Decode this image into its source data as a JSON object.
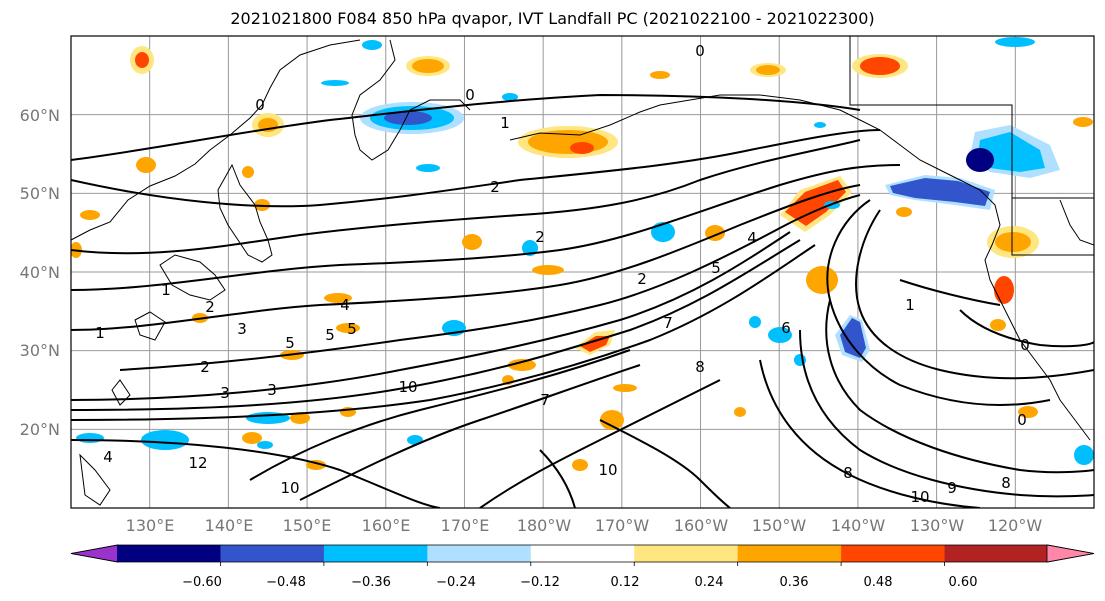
{
  "title": "2021021800 F084 850 hPa qvapor, IVT Landfall PC (2021022100 - 2021022300)",
  "lat_labels": [
    "60°N",
    "50°N",
    "40°N",
    "30°N",
    "20°N"
  ],
  "lat_values": [
    60,
    50,
    40,
    30,
    20
  ],
  "lon_labels": [
    "130°E",
    "140°E",
    "150°E",
    "160°E",
    "170°E",
    "180°W",
    "170°W",
    "160°W",
    "150°W",
    "140°W",
    "130°W",
    "120°W"
  ],
  "lon_values": [
    130,
    140,
    150,
    160,
    170,
    180,
    190,
    200,
    210,
    220,
    230,
    240
  ],
  "map_extent": {
    "lon_min": 120,
    "lon_max": 250,
    "lat_min": 10,
    "lat_max": 70
  },
  "colorbar": {
    "labels": [
      "−0.60",
      "−0.48",
      "−0.36",
      "−0.24",
      "−0.12",
      "0.12",
      "0.24",
      "0.36",
      "0.48",
      "0.60"
    ],
    "colors": [
      "#9933cc",
      "#000080",
      "#3355cc",
      "#00bfff",
      "#b0e0ff",
      "#ffffff",
      "#ffe680",
      "#ffa500",
      "#ff4500",
      "#b22222",
      "#ff88aa"
    ]
  },
  "shading_colors": {
    "pos_light": "#ffe680",
    "pos_mid": "#ffa500",
    "pos_high": "#ff4500",
    "neg_light": "#b0e0ff",
    "neg_mid": "#00bfff",
    "neg_high": "#3355cc",
    "neg_max": "#000080"
  },
  "contour_labels": [
    "0",
    "0",
    "1",
    "2",
    "2",
    "0",
    "3",
    "5",
    "5",
    "2",
    "3",
    "1",
    "1",
    "10",
    "12",
    "4",
    "2",
    "7",
    "6",
    "4",
    "5",
    "5",
    "8",
    "7",
    "10",
    "10",
    "9",
    "8",
    "10",
    "8",
    "0",
    "0",
    "1",
    "3",
    "2",
    "4"
  ]
}
